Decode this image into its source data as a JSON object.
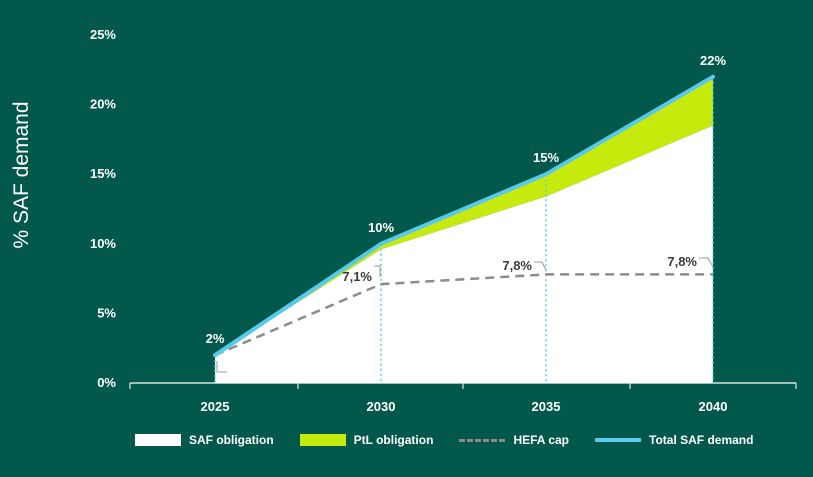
{
  "chart_data": {
    "type": "area",
    "title": "",
    "xlabel": "",
    "ylabel": "% SAF demand",
    "categories": [
      "2025",
      "2030",
      "2035",
      "2040"
    ],
    "ylim": [
      0,
      25
    ],
    "yticks": [
      "0%",
      "5%",
      "10%",
      "15%",
      "20%",
      "25%"
    ],
    "series": [
      {
        "name": "SAF obligation",
        "type": "area",
        "color": "#ffffff",
        "values": [
          2,
          9.6,
          13.4,
          18.5
        ]
      },
      {
        "name": "PtL obligation",
        "type": "area",
        "color": "#c6ea0c",
        "values": [
          0,
          0.4,
          1.6,
          3.5
        ]
      },
      {
        "name": "HEFA cap",
        "type": "dashed-line",
        "color": "#8c8c8c",
        "values": [
          2,
          7.1,
          7.8,
          7.8
        ]
      },
      {
        "name": "Total SAF demand",
        "type": "line",
        "color": "#57c9ec",
        "values": [
          2,
          10,
          15,
          22
        ]
      }
    ],
    "total_labels": [
      "2%",
      "10%",
      "15%",
      "22%"
    ],
    "hefa_labels": [
      "2%",
      "7,1%",
      "7,8%",
      "7,8%"
    ],
    "legend_position": "bottom"
  },
  "legend": {
    "items": [
      "SAF obligation",
      "PtL obligation",
      "HEFA cap",
      "Total SAF demand"
    ]
  }
}
